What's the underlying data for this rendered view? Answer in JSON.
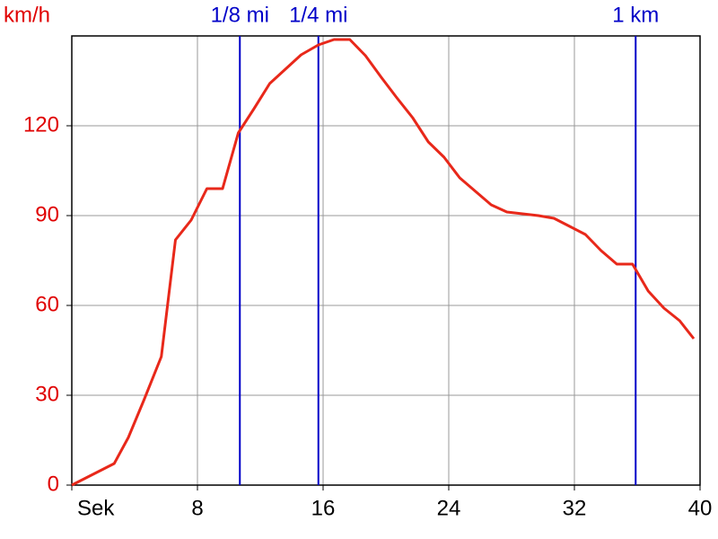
{
  "chart_data": {
    "type": "line",
    "y_label": "km/h",
    "x": [
      0,
      2.7,
      3.6,
      4.6,
      5.7,
      6.6,
      7.6,
      8.6,
      9.6,
      10.6,
      11.6,
      12.6,
      14.6,
      15.7,
      16.7,
      17.7,
      18.7,
      19.7,
      20.7,
      21.7,
      22.7,
      23.7,
      24.7,
      25.7,
      26.7,
      27.7,
      28.7,
      29.7,
      30.7,
      31.7,
      32.7,
      33.7,
      34.7,
      35.7,
      36.7,
      37.7,
      38.7,
      39.6
    ],
    "values": [
      0,
      7.2,
      15.9,
      28.5,
      42.9,
      81.9,
      88.5,
      99,
      99,
      117.6,
      125.7,
      134.1,
      143.7,
      147,
      148.8,
      148.8,
      143.4,
      136.2,
      129.3,
      122.7,
      114.6,
      109.5,
      102.6,
      98.1,
      93.6,
      91.2,
      90.6,
      90,
      89.1,
      86.4,
      83.7,
      78.3,
      73.8,
      73.8,
      64.8,
      59.1,
      54.9,
      48.9
    ],
    "color": "#e8281a",
    "xlim": [
      0,
      40
    ],
    "ylim": [
      0,
      150
    ],
    "xticks": [
      {
        "value": 0,
        "label": "Sek"
      },
      8,
      16,
      24,
      32,
      40
    ],
    "yticks": [
      0,
      30,
      60,
      90,
      120
    ],
    "grid": true,
    "markers": [
      {
        "label": "1/8 mi",
        "x": 10.7
      },
      {
        "label": "1/4 mi",
        "x": 15.7
      },
      {
        "label": "1 km",
        "x": 35.9
      }
    ],
    "marker_color": "#0000c8",
    "y_tick_color": "#e00000"
  }
}
